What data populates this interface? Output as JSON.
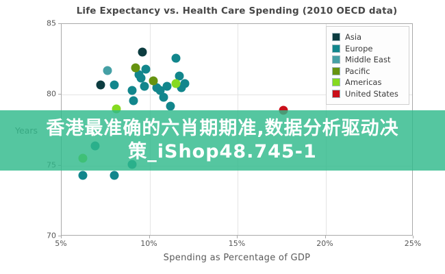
{
  "overlay": {
    "line1": "香港最准确的六肖期期准,数据分析驱动决",
    "line2": "策_iShop48.745-1",
    "bg_color": "#2fba8b",
    "text_color": "#ffffff"
  },
  "chart_data": {
    "type": "scatter",
    "title": "Life Expectancy vs. Health Care Spending (2010 OECD data)",
    "xlabel": "Spending as Percentage of GDP",
    "ylabel": "Years",
    "xlim": [
      5,
      25
    ],
    "ylim": [
      70,
      85
    ],
    "grid": true,
    "legend_position": "top-right",
    "x_ticks": [
      {
        "label": "5%",
        "value": 5
      },
      {
        "label": "10%",
        "value": 10
      },
      {
        "label": "15%",
        "value": 15
      },
      {
        "label": "20%",
        "value": 20
      },
      {
        "label": "25%",
        "value": 25
      }
    ],
    "y_ticks": [
      {
        "label": "85",
        "value": 85
      },
      {
        "label": "80",
        "value": 80
      },
      {
        "label": "75",
        "value": 75
      },
      {
        "label": "70",
        "value": 70
      }
    ],
    "x_grid": [
      10,
      15,
      20
    ],
    "y_grid": [
      80,
      75
    ],
    "series": [
      {
        "name": "Asia",
        "color": "#0c3c40",
        "points": [
          [
            9.6,
            83.0
          ],
          [
            7.2,
            80.7
          ]
        ]
      },
      {
        "name": "Europe",
        "color": "#12868c",
        "points": [
          [
            11.5,
            82.6
          ],
          [
            9.8,
            81.8
          ],
          [
            9.4,
            81.4
          ],
          [
            9.5,
            81.2
          ],
          [
            9.7,
            80.6
          ],
          [
            8.0,
            80.7
          ],
          [
            10.4,
            80.5
          ],
          [
            10.6,
            80.3
          ],
          [
            11.0,
            80.6
          ],
          [
            11.7,
            81.3
          ],
          [
            12.0,
            80.8
          ],
          [
            11.8,
            80.5
          ],
          [
            9.0,
            80.3
          ],
          [
            9.1,
            79.6
          ],
          [
            10.8,
            79.8
          ],
          [
            11.2,
            79.2
          ],
          [
            6.9,
            76.4
          ],
          [
            9.0,
            75.1
          ],
          [
            6.2,
            74.3
          ],
          [
            8.0,
            74.3
          ]
        ]
      },
      {
        "name": "Middle East",
        "color": "#45a0a5",
        "points": [
          [
            7.6,
            81.7
          ]
        ]
      },
      {
        "name": "Pacific",
        "color": "#669310",
        "points": [
          [
            9.2,
            81.9
          ],
          [
            10.2,
            81.0
          ]
        ]
      },
      {
        "name": "Americas",
        "color": "#85da20",
        "points": [
          [
            11.5,
            80.8
          ],
          [
            8.1,
            79.0
          ],
          [
            6.2,
            75.5
          ]
        ]
      },
      {
        "name": "United States",
        "color": "#c9101a",
        "points": [
          [
            17.6,
            78.9
          ]
        ]
      }
    ]
  }
}
